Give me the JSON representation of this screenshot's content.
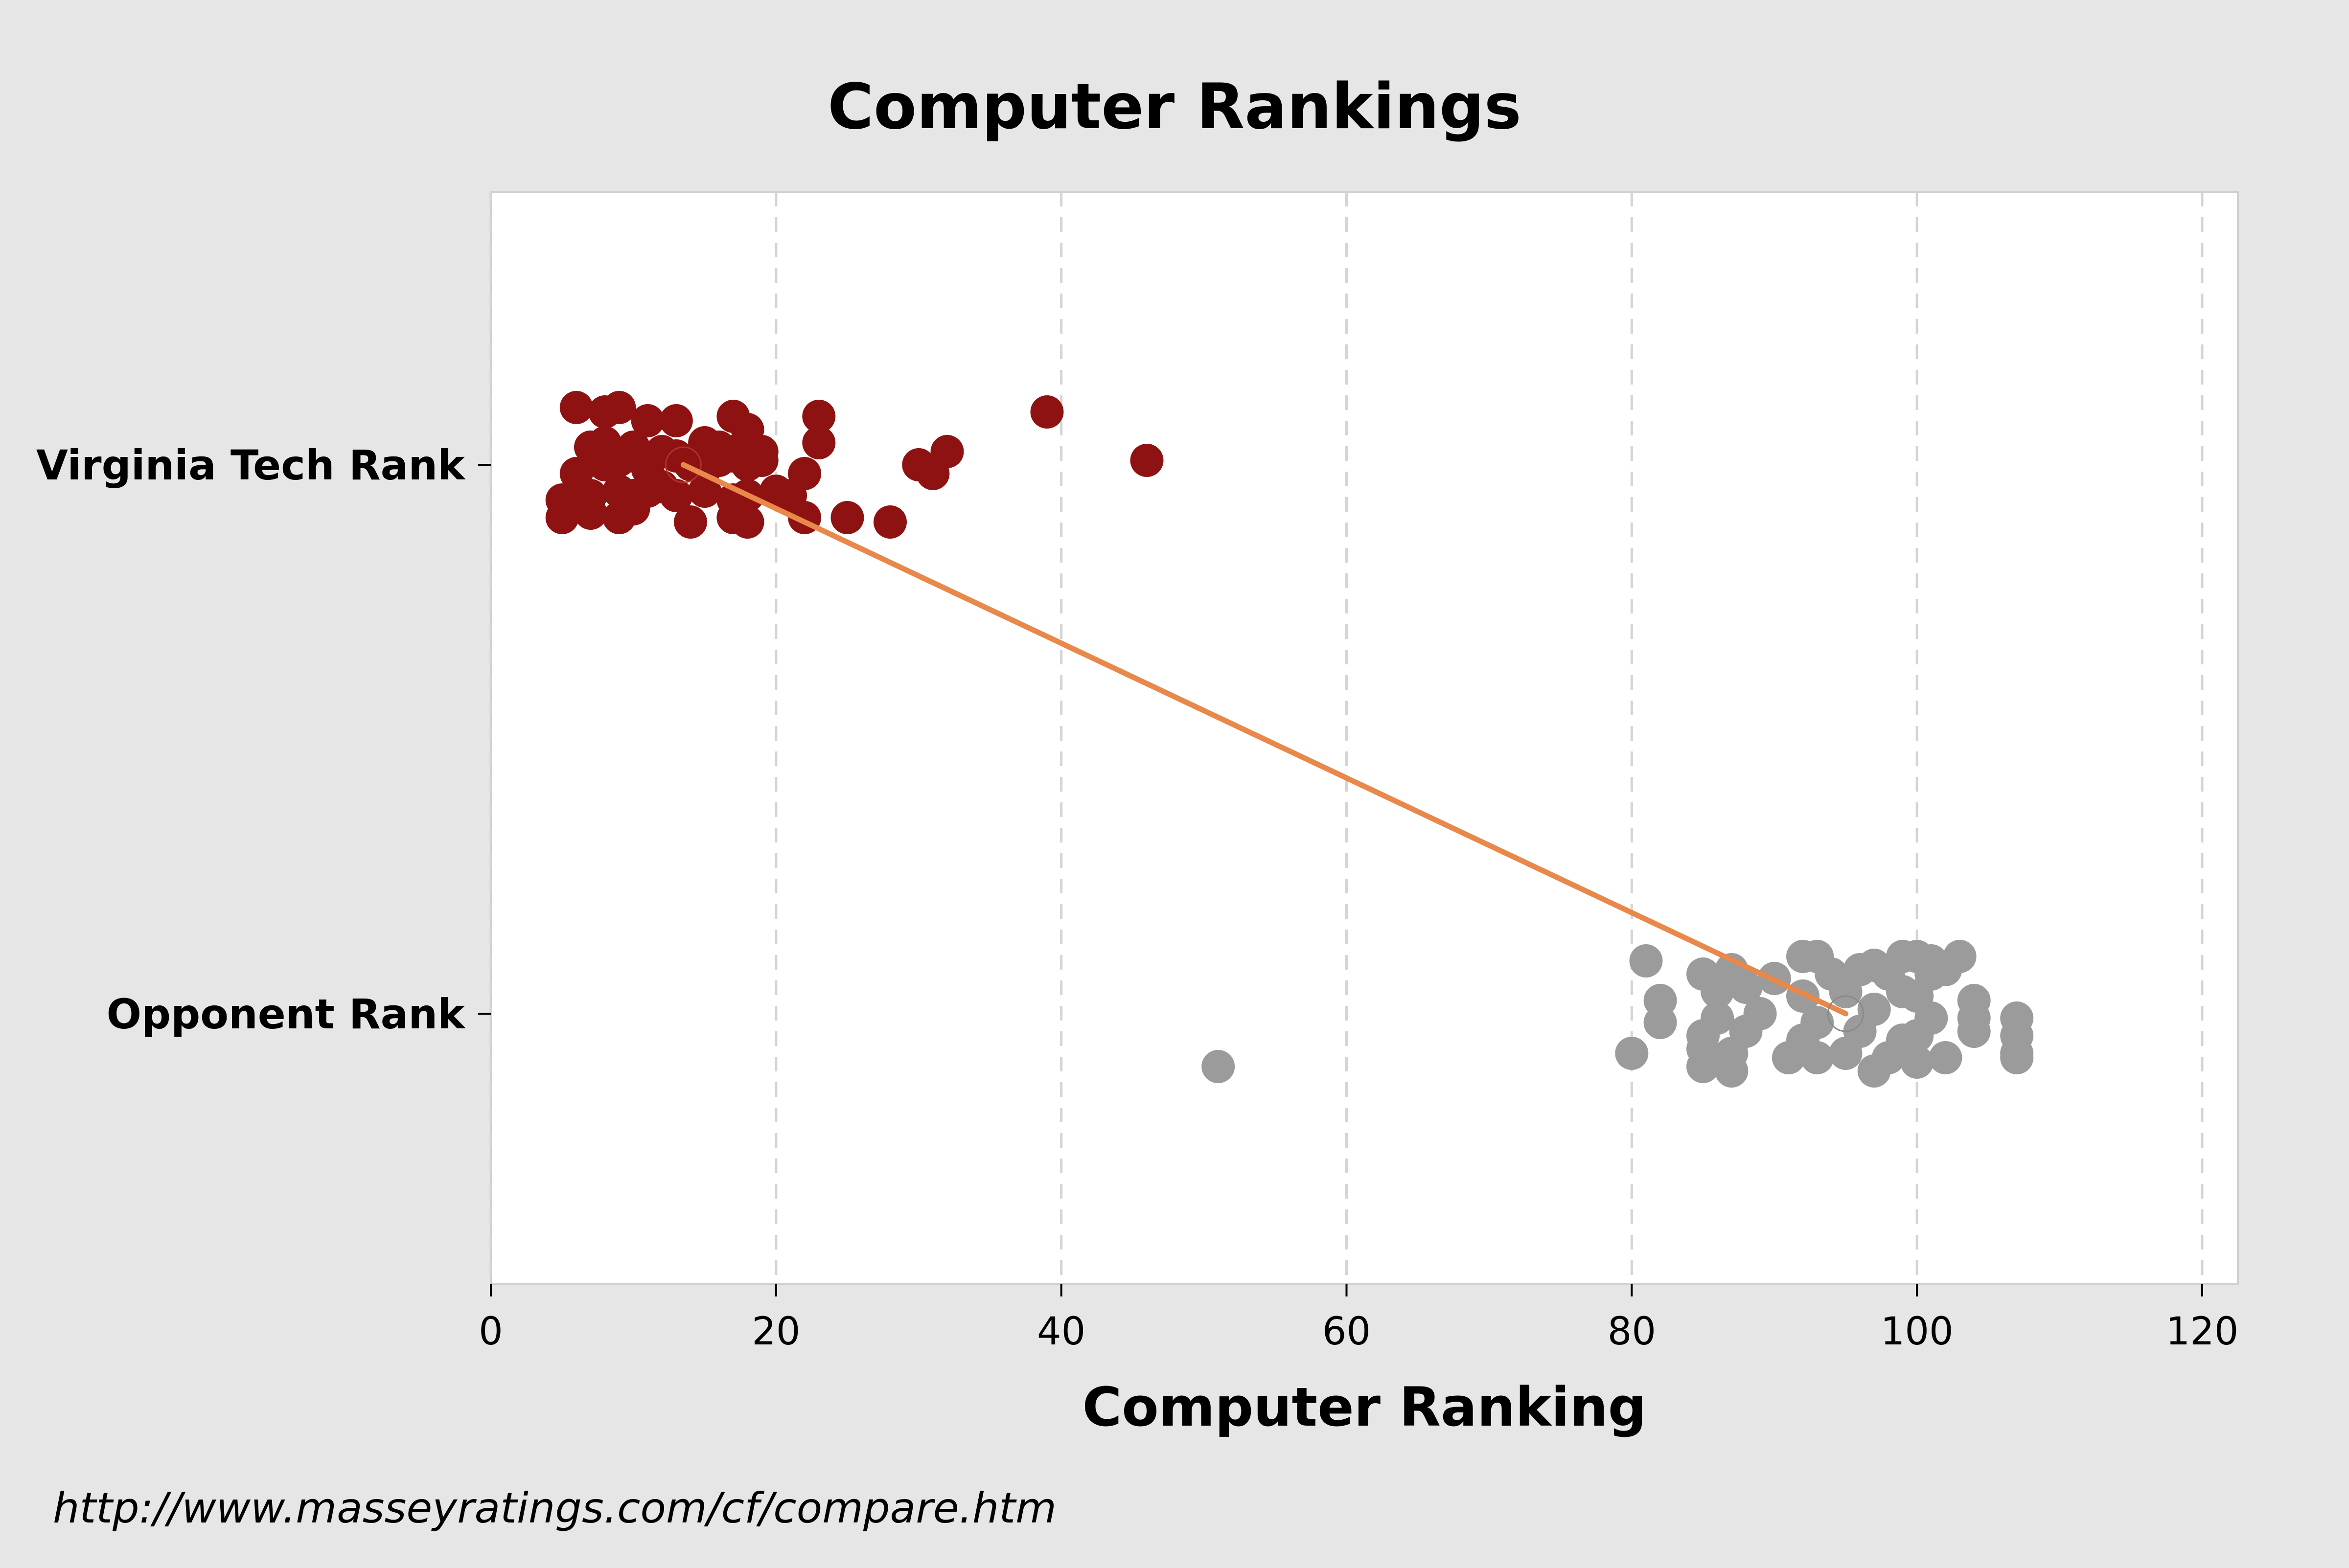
{
  "source_note": "http://www.masseyratings.com/cf/compare.htm",
  "chart_data": {
    "type": "scatter",
    "title": "Computer Rankings",
    "xlabel": "Computer Ranking",
    "ylabel": "",
    "xlim": [
      0,
      122
    ],
    "xticks": [
      "0",
      "20",
      "40",
      "60",
      "80",
      "100",
      "120"
    ],
    "grid": "vertical-dashed",
    "categories": [
      "Virginia Tech Rank",
      "Opponent Rank"
    ],
    "series": [
      {
        "name": "Virginia Tech Rank",
        "color": "#8f1212",
        "x": [
          6,
          8,
          9,
          11,
          13,
          17,
          18,
          23,
          39,
          7,
          8,
          10,
          12,
          15,
          16,
          17,
          18,
          19,
          23,
          6,
          8,
          9,
          11,
          13,
          14,
          15,
          16,
          17,
          18,
          19,
          22,
          30,
          31,
          32,
          46,
          5,
          7,
          9,
          10,
          11,
          12,
          13,
          15,
          17,
          18,
          20,
          21,
          5,
          7,
          9,
          10,
          14,
          17,
          18,
          22,
          25,
          28
        ],
        "y": [
          0.13,
          0.12,
          0.13,
          0.1,
          0.1,
          0.11,
          0.08,
          0.11,
          0.12,
          0.04,
          0.05,
          0.04,
          0.03,
          0.05,
          0.04,
          0.03,
          0.05,
          0.03,
          0.05,
          -0.02,
          0.0,
          0.01,
          -0.01,
          0.02,
          0.0,
          -0.01,
          0.01,
          0.02,
          0.0,
          0.01,
          -0.02,
          0.0,
          -0.02,
          0.03,
          0.01,
          -0.08,
          -0.07,
          -0.06,
          -0.07,
          -0.06,
          -0.05,
          -0.07,
          -0.06,
          -0.08,
          -0.07,
          -0.06,
          -0.07,
          -0.12,
          -0.11,
          -0.12,
          -0.1,
          -0.13,
          -0.12,
          -0.13,
          -0.12,
          -0.12,
          -0.13
        ]
      },
      {
        "name": "Opponent Rank",
        "color": "#9b9b9b",
        "x": [
          81,
          92,
          93,
          99,
          100,
          101,
          103,
          85,
          87,
          90,
          94,
          96,
          97,
          98,
          101,
          102,
          82,
          86,
          88,
          92,
          95,
          99,
          100,
          104,
          82,
          86,
          89,
          93,
          97,
          101,
          104,
          107,
          85,
          88,
          92,
          96,
          99,
          100,
          104,
          107,
          51,
          80,
          85,
          87,
          91,
          95,
          98,
          102,
          107,
          85,
          87,
          93,
          97,
          100,
          107
        ],
        "y": [
          0.12,
          0.13,
          0.13,
          0.13,
          0.13,
          0.12,
          0.13,
          0.09,
          0.1,
          0.08,
          0.09,
          0.1,
          0.11,
          0.09,
          0.09,
          0.1,
          0.03,
          0.05,
          0.06,
          0.04,
          0.05,
          0.05,
          0.04,
          0.03,
          -0.02,
          -0.01,
          0.0,
          -0.02,
          0.01,
          -0.01,
          -0.01,
          -0.01,
          -0.05,
          -0.04,
          -0.06,
          -0.04,
          -0.06,
          -0.05,
          -0.04,
          -0.05,
          -0.12,
          -0.09,
          -0.08,
          -0.09,
          -0.1,
          -0.09,
          -0.1,
          -0.1,
          -0.09,
          -0.12,
          -0.13,
          -0.1,
          -0.13,
          -0.11,
          -0.1
        ]
      }
    ],
    "mean_line": {
      "color": "#e8884a",
      "from": {
        "category": "Virginia Tech Rank",
        "x": 13.5
      },
      "to": {
        "category": "Opponent Rank",
        "x": 95
      }
    }
  }
}
